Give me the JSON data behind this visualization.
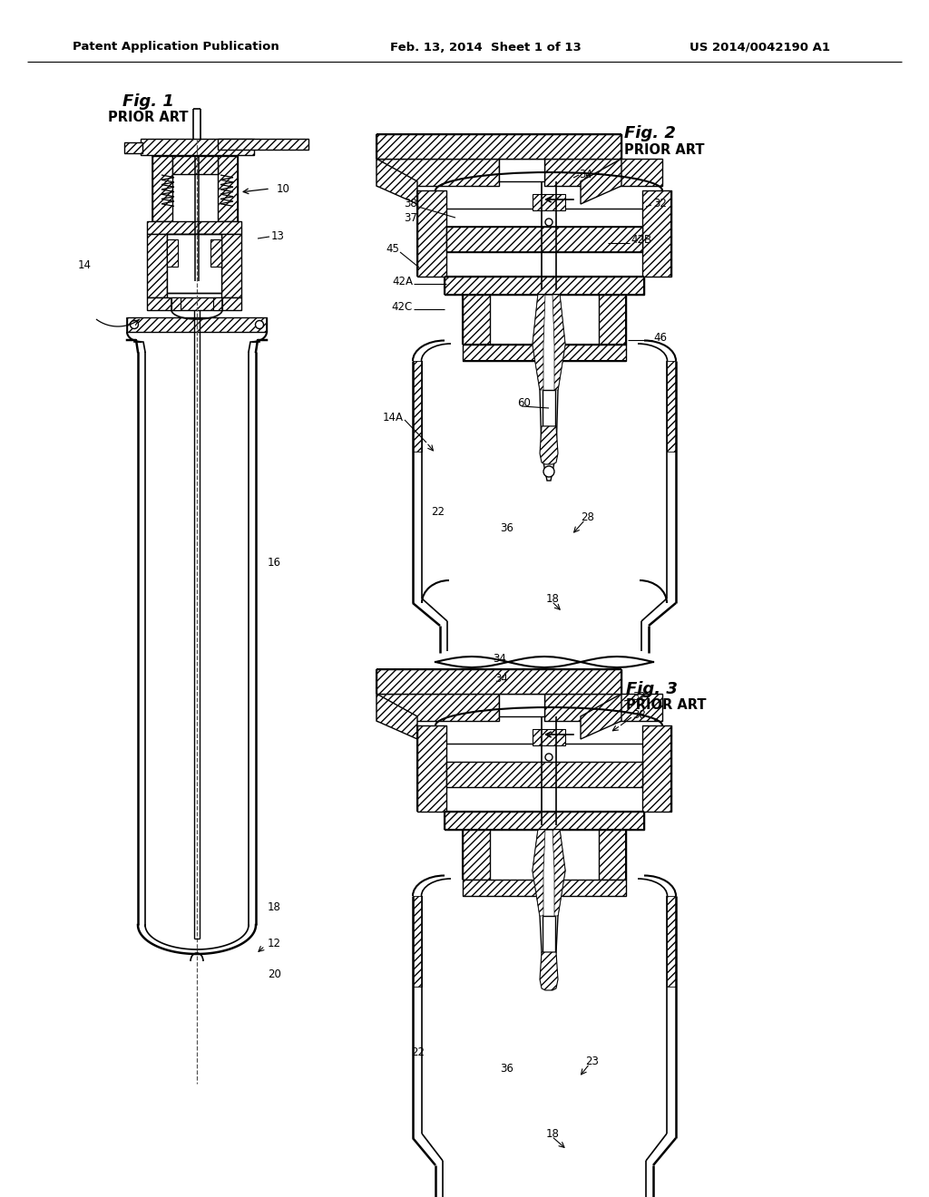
{
  "header_left": "Patent Application Publication",
  "header_center": "Feb. 13, 2014  Sheet 1 of 13",
  "header_right": "US 2014/0042190 A1",
  "fig1_title": "Fig. 1",
  "fig1_subtitle": "PRIOR ART",
  "fig2_title": "Fig. 2",
  "fig2_subtitle": "PRIOR ART",
  "fig3_title": "Fig. 3",
  "fig3_subtitle": "PRIOR ART",
  "bg_color": "#ffffff"
}
